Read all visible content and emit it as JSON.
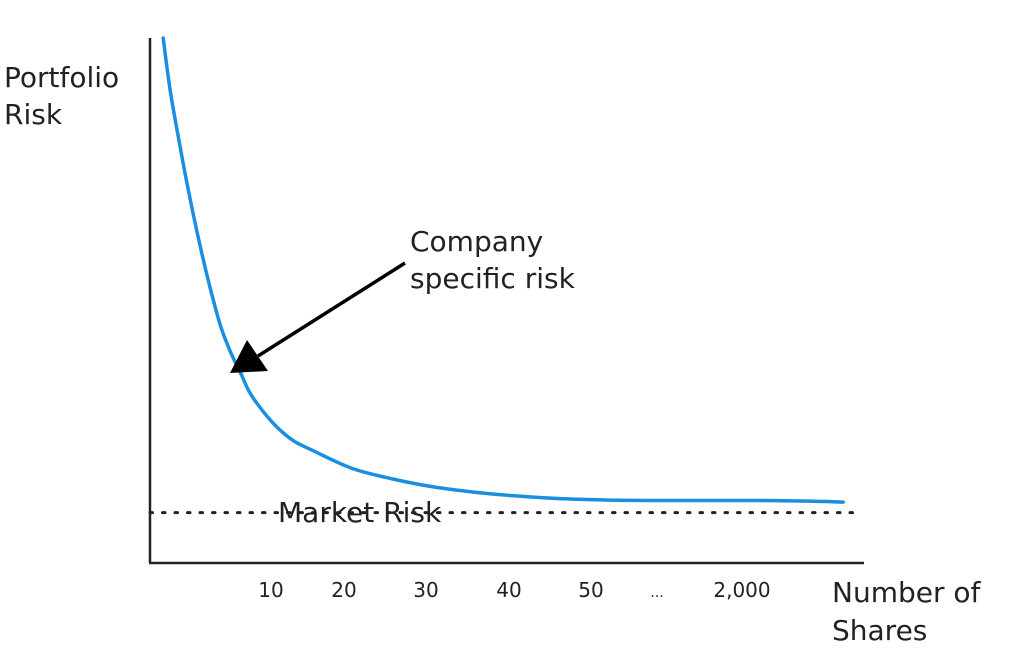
{
  "chart_data": {
    "type": "line",
    "ylabel_lines": [
      "Portfolio",
      "Risk"
    ],
    "xlabel_lines": [
      "Number of",
      "Shares"
    ],
    "x_tick_labels": [
      "10",
      "20",
      "30",
      "40",
      "50",
      "...",
      "2,000"
    ],
    "series": [
      {
        "points": [
          [
            1.3,
            100
          ],
          [
            2,
            90
          ],
          [
            3,
            79
          ],
          [
            4,
            69
          ],
          [
            5,
            60
          ],
          [
            6,
            52
          ],
          [
            7,
            45
          ],
          [
            8,
            40
          ],
          [
            9,
            36
          ],
          [
            10,
            32
          ],
          [
            12,
            27
          ],
          [
            14,
            23.5
          ],
          [
            16,
            21.5
          ],
          [
            20,
            18
          ],
          [
            24,
            16
          ],
          [
            28,
            14.5
          ],
          [
            32,
            13.5
          ],
          [
            36,
            12.8
          ],
          [
            40,
            12.3
          ],
          [
            45,
            12
          ],
          [
            50,
            11.9
          ],
          [
            55,
            11.9
          ],
          [
            60,
            11.9
          ],
          [
            65,
            11.8
          ],
          [
            68.5,
            11.6
          ]
        ]
      }
    ],
    "market_risk_level": 9.6,
    "annotations": [
      {
        "text_lines": [
          "Company",
          "specific risk"
        ]
      },
      {
        "text": "Market Risk"
      }
    ],
    "colors": {
      "curve": "#1a8fe0",
      "axis": "#222222",
      "dotted_line": "#222222"
    }
  }
}
